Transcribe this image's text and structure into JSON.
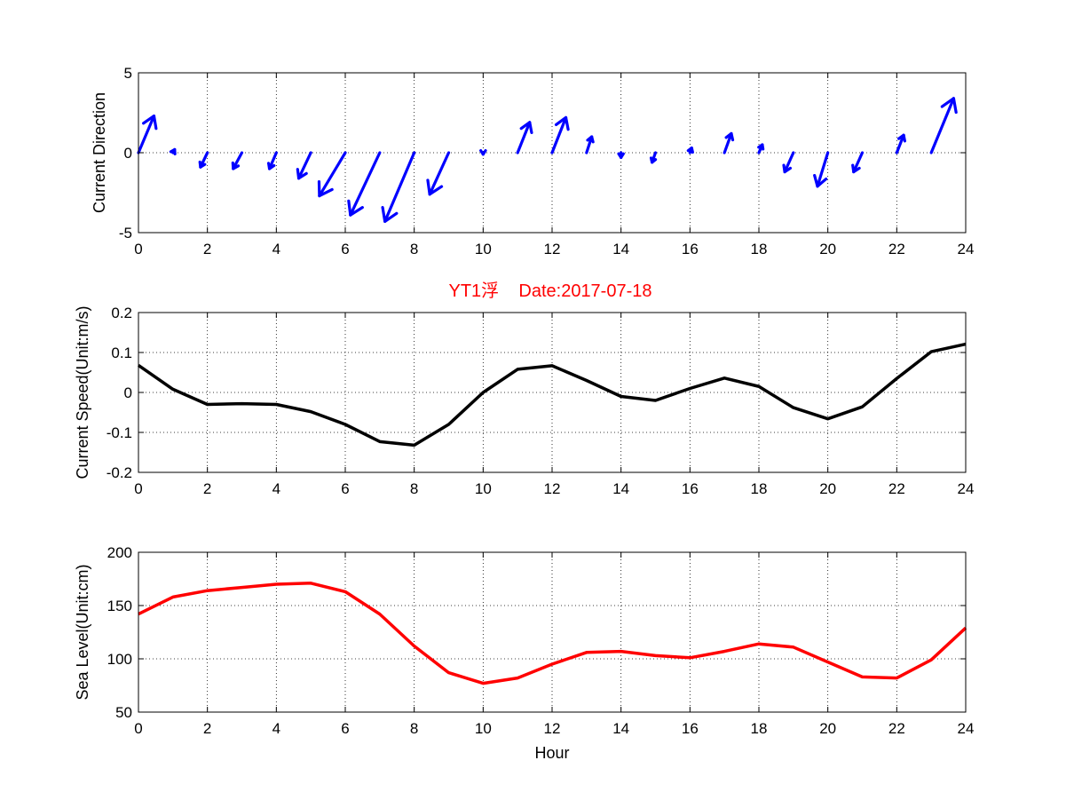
{
  "colors": {
    "quiver": "#0000ff",
    "speed": "#000000",
    "sea_level": "#ff0000",
    "title": "#ff0000"
  },
  "chart_data": [
    {
      "type": "quiver",
      "ylabel": "Current Direction",
      "xlim": [
        0,
        24
      ],
      "ylim": [
        -5,
        5
      ],
      "xticks": [
        "0",
        "2",
        "4",
        "6",
        "8",
        "10",
        "12",
        "14",
        "16",
        "18",
        "20",
        "22",
        "24"
      ],
      "yticks": [
        "-5",
        "0",
        "5"
      ],
      "grid": true,
      "x": [
        0,
        1,
        2,
        3,
        4,
        5,
        6,
        7,
        8,
        9,
        10,
        11,
        12,
        13,
        14,
        15,
        16,
        17,
        18,
        19,
        20,
        21,
        22,
        23
      ],
      "u": [
        0.45,
        0.05,
        -0.2,
        -0.25,
        -0.2,
        -0.35,
        -0.75,
        -0.85,
        -0.85,
        -0.55,
        0.0,
        0.35,
        0.4,
        0.15,
        0.0,
        -0.1,
        0.05,
        0.2,
        0.1,
        -0.25,
        -0.3,
        -0.25,
        0.2,
        0.65
      ],
      "v": [
        2.3,
        0.2,
        -0.9,
        -1.0,
        -1.0,
        -1.6,
        -2.7,
        -3.9,
        -4.3,
        -2.6,
        -0.1,
        1.9,
        2.2,
        1.0,
        -0.3,
        -0.6,
        0.3,
        1.2,
        0.5,
        -1.2,
        -2.1,
        -1.2,
        1.1,
        3.4
      ]
    },
    {
      "type": "line",
      "title": "YT1浮    Date:2017-07-18",
      "ylabel": "Current Speed(Unit:m/s)",
      "xlim": [
        0,
        24
      ],
      "ylim": [
        -0.2,
        0.2
      ],
      "xticks": [
        "0",
        "2",
        "4",
        "6",
        "8",
        "10",
        "12",
        "14",
        "16",
        "18",
        "20",
        "22",
        "24"
      ],
      "yticks": [
        "-0.2",
        "-0.1",
        "0",
        "0.1",
        "0.2"
      ],
      "grid": true,
      "x": [
        0,
        1,
        2,
        3,
        4,
        5,
        6,
        7,
        8,
        9,
        10,
        11,
        12,
        13,
        14,
        15,
        16,
        17,
        18,
        19,
        20,
        21,
        22,
        23,
        24
      ],
      "series": [
        {
          "values": [
            0.068,
            0.008,
            -0.03,
            -0.028,
            -0.03,
            -0.048,
            -0.08,
            -0.123,
            -0.132,
            -0.08,
            0.0,
            0.058,
            0.067,
            0.03,
            -0.01,
            -0.02,
            0.01,
            0.036,
            0.015,
            -0.038,
            -0.066,
            -0.036,
            0.035,
            0.102,
            0.121
          ]
        }
      ]
    },
    {
      "type": "line",
      "ylabel": "Sea Level(Unit:cm)",
      "xlabel": "Hour",
      "xlim": [
        0,
        24
      ],
      "ylim": [
        50,
        200
      ],
      "xticks": [
        "0",
        "2",
        "4",
        "6",
        "8",
        "10",
        "12",
        "14",
        "16",
        "18",
        "20",
        "22",
        "24"
      ],
      "yticks": [
        "50",
        "100",
        "150",
        "200"
      ],
      "grid": true,
      "x": [
        0,
        1,
        2,
        3,
        4,
        5,
        6,
        7,
        8,
        9,
        10,
        11,
        12,
        13,
        14,
        15,
        16,
        17,
        18,
        19,
        20,
        21,
        22,
        23,
        24
      ],
      "series": [
        {
          "values": [
            142,
            158,
            164,
            167,
            170,
            171,
            163,
            142,
            112,
            87,
            77,
            82,
            95,
            106,
            107,
            103,
            101,
            107,
            114,
            111,
            97,
            83,
            82,
            99,
            129
          ]
        }
      ]
    }
  ]
}
